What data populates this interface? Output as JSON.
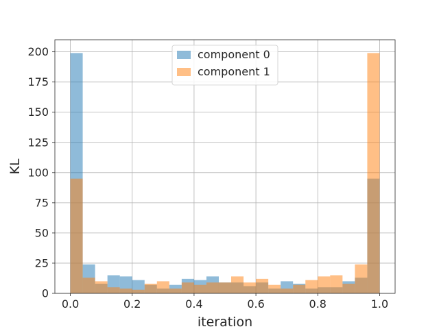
{
  "chart_data": {
    "type": "bar",
    "histogram": true,
    "title": "",
    "xlabel": "iteration",
    "ylabel": "KL",
    "xlim": [
      -0.05,
      1.05
    ],
    "ylim": [
      0,
      210
    ],
    "bin_edges": [
      0.0,
      0.04,
      0.08,
      0.12,
      0.16,
      0.2,
      0.24,
      0.28,
      0.32,
      0.36,
      0.4,
      0.44,
      0.48,
      0.52,
      0.56,
      0.6,
      0.64,
      0.68,
      0.72,
      0.76,
      0.8,
      0.84,
      0.88,
      0.92,
      0.96,
      1.0
    ],
    "series": [
      {
        "name": "component 0",
        "color": "#1f77b4",
        "values": [
          199,
          24,
          8,
          15,
          14,
          11,
          7,
          4,
          7,
          12,
          11,
          14,
          9,
          9,
          6,
          9,
          4,
          10,
          8,
          4,
          5,
          5,
          10,
          13,
          95
        ]
      },
      {
        "name": "component 1",
        "color": "#ff7f0e",
        "values": [
          95,
          13,
          10,
          5,
          4,
          3,
          8,
          10,
          4,
          9,
          7,
          9,
          9,
          14,
          9,
          12,
          7,
          4,
          7,
          11,
          14,
          15,
          8,
          24,
          199
        ]
      }
    ],
    "opacity": 0.5,
    "x_ticks": [
      "0.0",
      "0.2",
      "0.4",
      "0.6",
      "0.8",
      "1.0"
    ],
    "x_tick_values": [
      0,
      0.2,
      0.4,
      0.6,
      0.8,
      1.0
    ],
    "y_ticks": [
      "0",
      "25",
      "50",
      "75",
      "100",
      "125",
      "150",
      "175",
      "200"
    ],
    "y_tick_values": [
      0,
      25,
      50,
      75,
      100,
      125,
      150,
      175,
      200
    ],
    "grid": true,
    "legend_position": "upper center"
  }
}
